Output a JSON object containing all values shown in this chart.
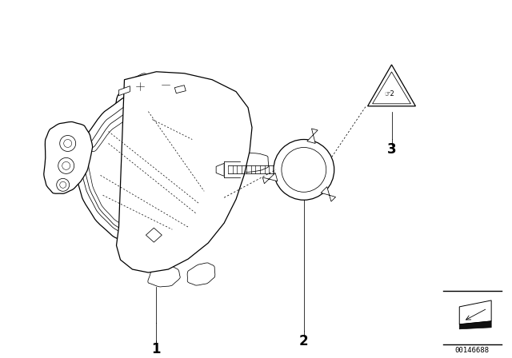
{
  "bg_color": "#ffffff",
  "line_color": "#000000",
  "part_labels": [
    "1",
    "2",
    "3"
  ],
  "catalog_number": "00146688",
  "lw_main": 0.9,
  "lw_thin": 0.55,
  "lw_dot": 0.5
}
